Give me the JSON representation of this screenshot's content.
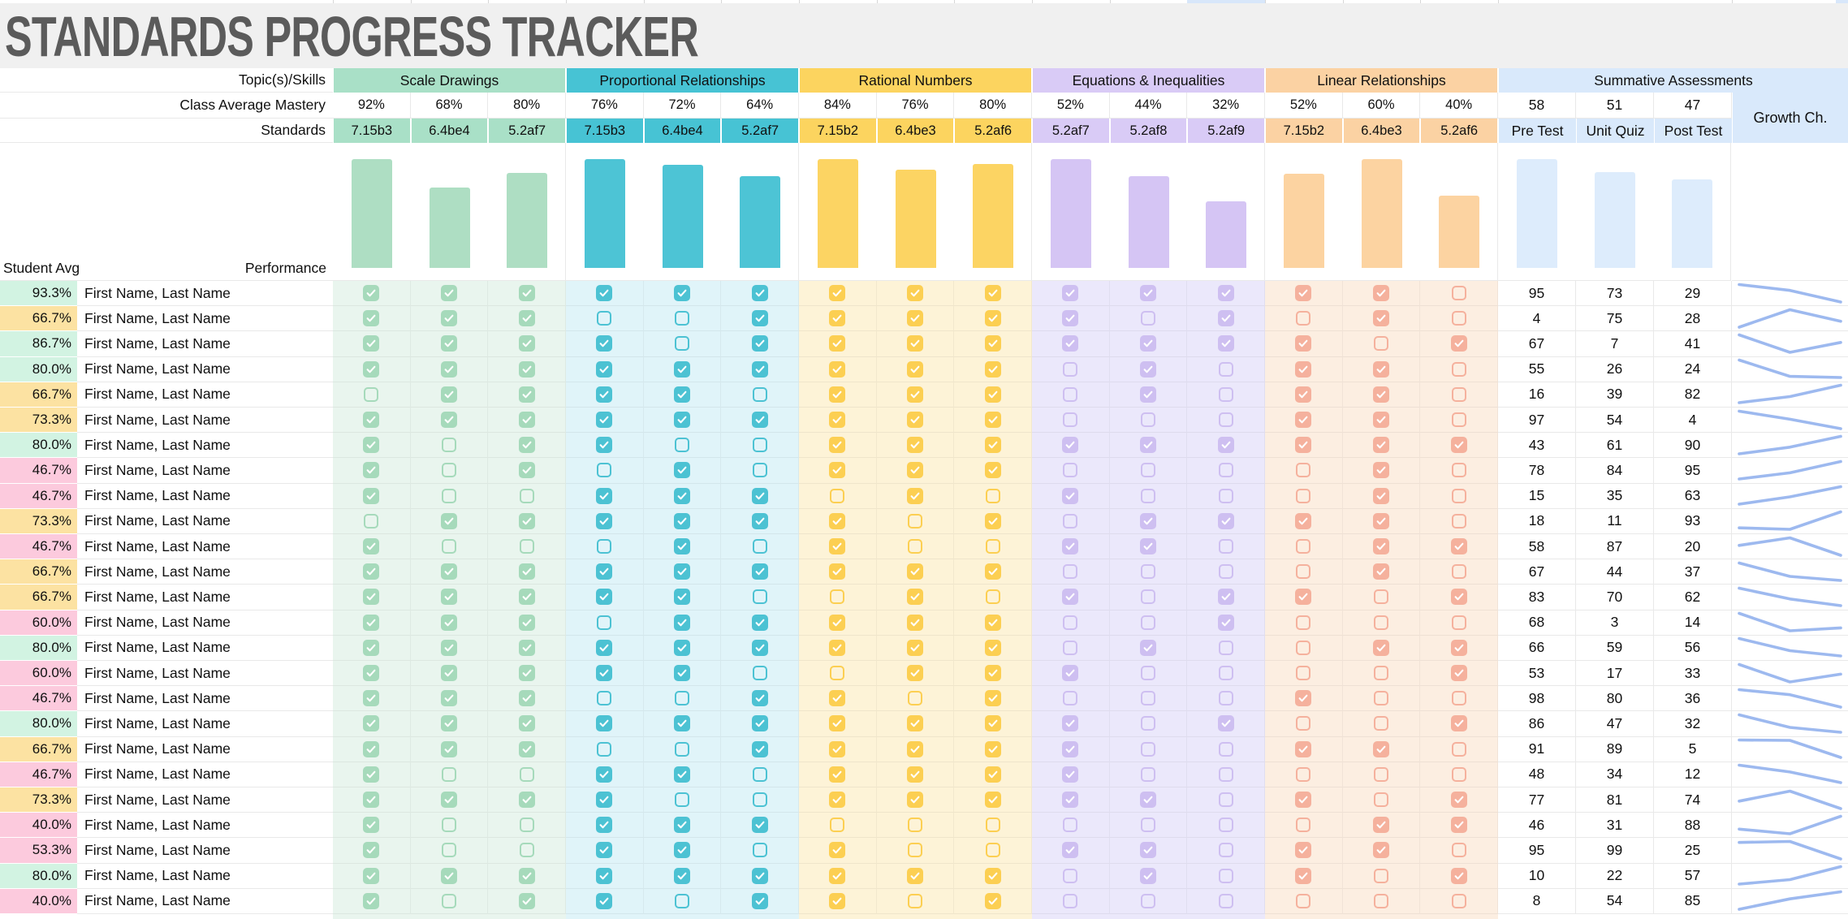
{
  "title": "STANDARDS PROGRESS TRACKER",
  "labels": {
    "topics": "Topic(s)/Skills",
    "class_avg": "Class Average Mastery",
    "standards": "Standards",
    "student_avg": "Student Avg",
    "performance": "Performance",
    "student_name": "First Name, Last Name"
  },
  "groups": [
    {
      "name": "Scale Drawings",
      "mastery_display": [
        "92%",
        "68%",
        "80%"
      ],
      "mastery_values": [
        92,
        68,
        80
      ],
      "standards": [
        "7.15b3",
        "6.4be4",
        "5.2af7"
      ],
      "colors": {
        "header": "#a9e0c7",
        "tint": "#e9f5ee",
        "box": "#a6dabb",
        "bar": "#aedec3"
      }
    },
    {
      "name": "Proportional Relationships",
      "mastery_display": [
        "76%",
        "72%",
        "64%"
      ],
      "mastery_values": [
        76,
        72,
        64
      ],
      "standards": [
        "7.15b3",
        "6.4be4",
        "5.2af7"
      ],
      "colors": {
        "header": "#47c3d4",
        "tint": "#e0f4f9",
        "box": "#4cc2d3",
        "bar": "#4dc4d5"
      }
    },
    {
      "name": "Rational Numbers",
      "mastery_display": [
        "84%",
        "76%",
        "80%"
      ],
      "mastery_values": [
        84,
        76,
        80
      ],
      "standards": [
        "7.15b2",
        "6.4be3",
        "5.2af6"
      ],
      "colors": {
        "header": "#fcd45f",
        "tint": "#fdf3d7",
        "box": "#fccf52",
        "bar": "#fcd463"
      }
    },
    {
      "name": "Equations & Inequalities",
      "mastery_display": [
        "52%",
        "44%",
        "32%"
      ],
      "mastery_values": [
        52,
        44,
        32
      ],
      "standards": [
        "5.2af7",
        "5.2af8",
        "5.2af9"
      ],
      "colors": {
        "header": "#d9cbf6",
        "tint": "#ebe8fb",
        "box": "#cebff1",
        "bar": "#d5c5f4"
      }
    },
    {
      "name": "Linear Relationships",
      "mastery_display": [
        "52%",
        "60%",
        "40%"
      ],
      "mastery_values": [
        52,
        60,
        40
      ],
      "standards": [
        "7.15b2",
        "6.4be3",
        "5.2af6"
      ],
      "colors": {
        "header": "#fbd2a3",
        "tint": "#fceee1",
        "box": "#f5b19d",
        "bar": "#fcd3a1"
      }
    }
  ],
  "summative": {
    "title": "Summative Assessments",
    "averages_display": [
      "58",
      "51",
      "47"
    ],
    "averages_values": [
      58,
      51,
      47
    ],
    "columns": [
      "Pre Test",
      "Unit Quiz",
      "Post Test"
    ],
    "growth_label": "Growth Ch.",
    "colors": {
      "header": "#d9e9fb",
      "bar": "#ddecfc",
      "spark": "#9db9ef"
    }
  },
  "avg_band_colors": {
    "green": "#d2f3e2",
    "yellow": "#fce2a2",
    "pink": "#fccadd"
  },
  "misc": {
    "band_bg": "#f0f0f0",
    "title_color": "#5b5b5b",
    "top_sliver_blue": "#d8e7fa",
    "grid_line": "#e9e9e9"
  },
  "students": [
    {
      "avg": "93.3%",
      "band": "green",
      "checks": [
        1,
        1,
        1,
        1,
        1,
        1,
        1,
        1,
        1,
        1,
        1,
        1,
        1,
        1,
        0
      ],
      "scores": [
        95,
        73,
        29
      ]
    },
    {
      "avg": "66.7%",
      "band": "yellow",
      "checks": [
        1,
        1,
        1,
        0,
        0,
        1,
        1,
        1,
        1,
        1,
        0,
        1,
        0,
        1,
        0
      ],
      "scores": [
        4,
        75,
        28
      ]
    },
    {
      "avg": "86.7%",
      "band": "green",
      "checks": [
        1,
        1,
        1,
        1,
        0,
        1,
        1,
        1,
        1,
        1,
        1,
        1,
        1,
        0,
        1
      ],
      "scores": [
        67,
        7,
        41
      ]
    },
    {
      "avg": "80.0%",
      "band": "green",
      "checks": [
        1,
        1,
        1,
        1,
        1,
        1,
        1,
        1,
        1,
        0,
        1,
        0,
        1,
        1,
        0
      ],
      "scores": [
        55,
        26,
        24
      ]
    },
    {
      "avg": "66.7%",
      "band": "yellow",
      "checks": [
        0,
        1,
        1,
        1,
        1,
        0,
        1,
        1,
        1,
        0,
        1,
        0,
        1,
        1,
        0
      ],
      "scores": [
        16,
        39,
        82
      ]
    },
    {
      "avg": "73.3%",
      "band": "yellow",
      "checks": [
        1,
        1,
        1,
        1,
        1,
        1,
        1,
        1,
        1,
        0,
        0,
        0,
        1,
        1,
        0
      ],
      "scores": [
        97,
        54,
        4
      ]
    },
    {
      "avg": "80.0%",
      "band": "green",
      "checks": [
        1,
        0,
        1,
        1,
        0,
        0,
        1,
        1,
        1,
        1,
        1,
        1,
        1,
        1,
        1
      ],
      "scores": [
        43,
        61,
        90
      ]
    },
    {
      "avg": "46.7%",
      "band": "pink",
      "checks": [
        1,
        0,
        1,
        0,
        1,
        0,
        1,
        1,
        1,
        0,
        0,
        0,
        0,
        1,
        0
      ],
      "scores": [
        78,
        84,
        95
      ]
    },
    {
      "avg": "46.7%",
      "band": "pink",
      "checks": [
        1,
        0,
        0,
        1,
        1,
        1,
        0,
        1,
        0,
        1,
        0,
        0,
        0,
        1,
        0
      ],
      "scores": [
        15,
        35,
        63
      ]
    },
    {
      "avg": "73.3%",
      "band": "yellow",
      "checks": [
        0,
        1,
        1,
        1,
        1,
        1,
        1,
        0,
        1,
        0,
        1,
        1,
        1,
        1,
        0
      ],
      "scores": [
        18,
        11,
        93
      ]
    },
    {
      "avg": "46.7%",
      "band": "pink",
      "checks": [
        1,
        0,
        0,
        0,
        1,
        0,
        1,
        0,
        0,
        1,
        1,
        0,
        0,
        1,
        1
      ],
      "scores": [
        58,
        87,
        20
      ]
    },
    {
      "avg": "66.7%",
      "band": "yellow",
      "checks": [
        1,
        1,
        1,
        1,
        1,
        1,
        1,
        1,
        1,
        0,
        0,
        0,
        0,
        1,
        0
      ],
      "scores": [
        67,
        44,
        37
      ]
    },
    {
      "avg": "66.7%",
      "band": "yellow",
      "checks": [
        1,
        1,
        1,
        1,
        1,
        0,
        0,
        1,
        0,
        1,
        0,
        1,
        1,
        0,
        1
      ],
      "scores": [
        83,
        70,
        62
      ]
    },
    {
      "avg": "60.0%",
      "band": "pink",
      "checks": [
        1,
        1,
        1,
        0,
        1,
        1,
        1,
        1,
        1,
        0,
        0,
        1,
        0,
        0,
        0
      ],
      "scores": [
        68,
        3,
        14
      ]
    },
    {
      "avg": "80.0%",
      "band": "green",
      "checks": [
        1,
        1,
        1,
        1,
        1,
        1,
        1,
        1,
        1,
        0,
        1,
        0,
        0,
        1,
        1
      ],
      "scores": [
        66,
        59,
        56
      ]
    },
    {
      "avg": "60.0%",
      "band": "pink",
      "checks": [
        1,
        1,
        1,
        1,
        1,
        0,
        0,
        1,
        1,
        1,
        0,
        0,
        0,
        0,
        1
      ],
      "scores": [
        53,
        17,
        33
      ]
    },
    {
      "avg": "46.7%",
      "band": "pink",
      "checks": [
        1,
        1,
        1,
        0,
        0,
        1,
        1,
        0,
        1,
        0,
        0,
        0,
        1,
        0,
        0
      ],
      "scores": [
        98,
        80,
        36
      ]
    },
    {
      "avg": "80.0%",
      "band": "green",
      "checks": [
        1,
        1,
        1,
        1,
        1,
        1,
        1,
        1,
        1,
        1,
        0,
        1,
        0,
        0,
        1
      ],
      "scores": [
        86,
        47,
        32
      ]
    },
    {
      "avg": "66.7%",
      "band": "yellow",
      "checks": [
        1,
        1,
        1,
        0,
        0,
        1,
        1,
        1,
        1,
        1,
        0,
        0,
        1,
        1,
        0
      ],
      "scores": [
        91,
        89,
        5
      ]
    },
    {
      "avg": "46.7%",
      "band": "pink",
      "checks": [
        1,
        0,
        0,
        1,
        1,
        0,
        1,
        1,
        1,
        1,
        0,
        0,
        0,
        0,
        0
      ],
      "scores": [
        48,
        34,
        12
      ]
    },
    {
      "avg": "73.3%",
      "band": "yellow",
      "checks": [
        1,
        1,
        1,
        1,
        0,
        0,
        1,
        1,
        1,
        1,
        1,
        0,
        1,
        0,
        1
      ],
      "scores": [
        77,
        81,
        74
      ]
    },
    {
      "avg": "40.0%",
      "band": "pink",
      "checks": [
        1,
        0,
        0,
        1,
        1,
        1,
        0,
        0,
        0,
        0,
        0,
        0,
        0,
        1,
        1
      ],
      "scores": [
        46,
        31,
        88
      ]
    },
    {
      "avg": "53.3%",
      "band": "pink",
      "checks": [
        1,
        0,
        0,
        1,
        1,
        0,
        1,
        0,
        0,
        1,
        1,
        0,
        1,
        1,
        0
      ],
      "scores": [
        95,
        99,
        25
      ]
    },
    {
      "avg": "80.0%",
      "band": "green",
      "checks": [
        1,
        1,
        1,
        1,
        1,
        1,
        1,
        1,
        1,
        0,
        1,
        0,
        1,
        0,
        1
      ],
      "scores": [
        10,
        22,
        57
      ]
    },
    {
      "avg": "40.0%",
      "band": "pink",
      "checks": [
        1,
        0,
        1,
        1,
        0,
        1,
        1,
        0,
        1,
        0,
        0,
        0,
        0,
        0,
        0
      ],
      "scores": [
        8,
        54,
        85
      ]
    }
  ]
}
